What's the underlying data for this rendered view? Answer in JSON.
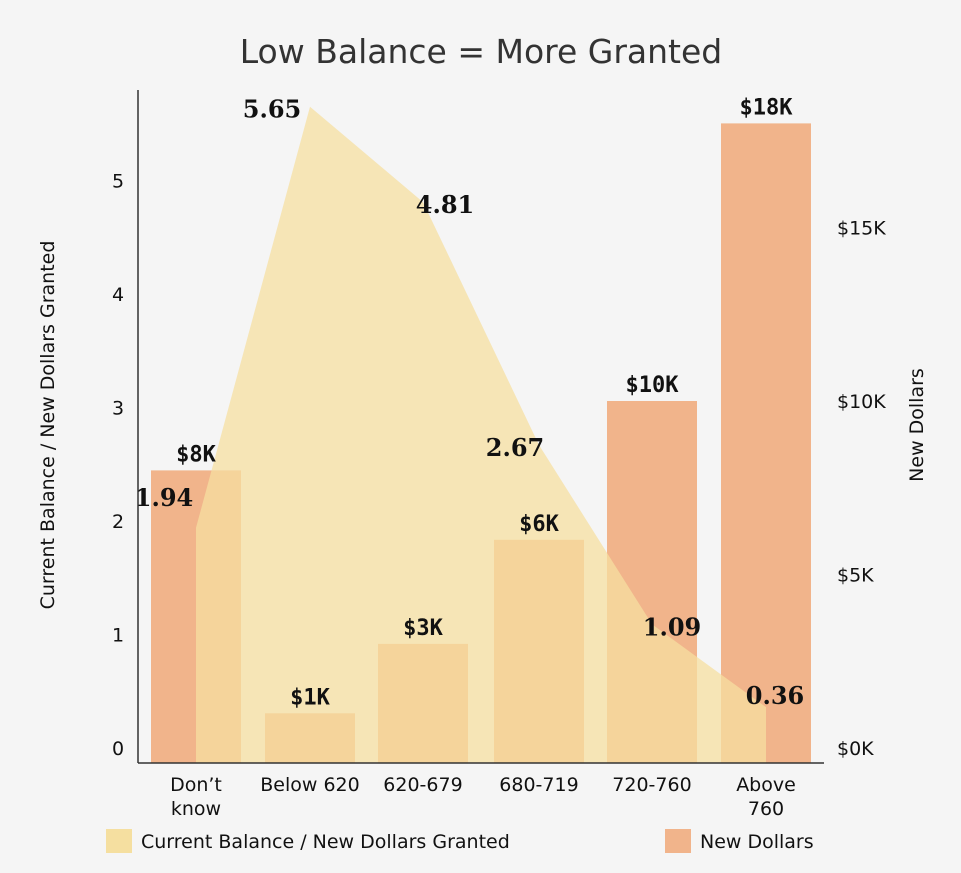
{
  "chart_data": {
    "type": "bar",
    "title": "Low Balance = More Granted",
    "categories": [
      [
        "Don’t",
        "know"
      ],
      [
        "Below 620"
      ],
      [
        "620-679"
      ],
      [
        "680-719"
      ],
      [
        "720-760"
      ],
      [
        "Above",
        "760"
      ]
    ],
    "series": [
      {
        "name": "Current Balance / New Dollars Granted",
        "type": "area",
        "axis": "left",
        "color": "#f5dfa0",
        "values": [
          1.94,
          5.65,
          4.81,
          2.67,
          1.09,
          0.36
        ],
        "labels": [
          "1.94",
          "5.65",
          "4.81",
          "2.67",
          "1.09",
          "0.36"
        ]
      },
      {
        "name": "New Dollars",
        "type": "bar",
        "axis": "right",
        "color": "#f0a878",
        "values": [
          8,
          1,
          3,
          6,
          10,
          18
        ],
        "labels": [
          "$8K",
          "$1K",
          "$3K",
          "$6K",
          "$10K",
          "$18K"
        ]
      }
    ],
    "y_left": {
      "label": "Current Balance / New Dollars Granted",
      "ticks": [
        "0",
        "1",
        "2",
        "3",
        "4",
        "5"
      ],
      "tick_values": [
        0,
        1,
        2,
        3,
        4,
        5
      ],
      "range": [
        0,
        5.9
      ]
    },
    "y_right": {
      "label": "New Dollars",
      "ticks": [
        "$0K",
        "$5K",
        "$10K",
        "$15K"
      ],
      "tick_values": [
        0,
        5,
        10,
        15
      ],
      "range": [
        0,
        20
      ]
    },
    "grid": false,
    "legend_position": "bottom"
  }
}
